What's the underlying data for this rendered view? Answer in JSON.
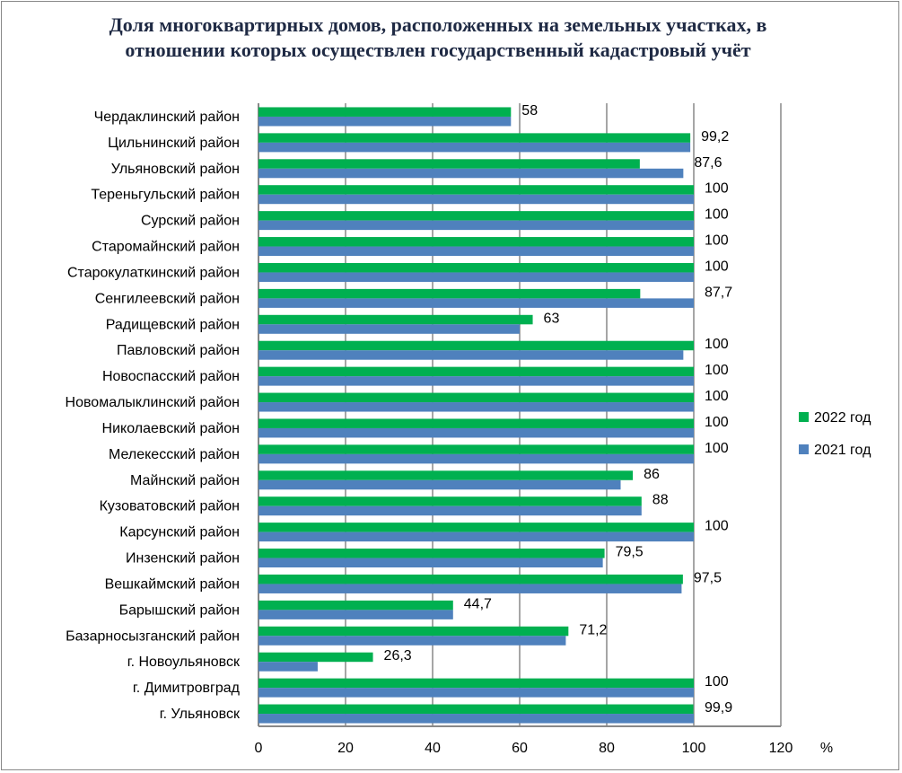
{
  "chart_data": {
    "type": "bar",
    "orientation": "horizontal",
    "title": "Доля многоквартирных домов, расположенных на земельных участках, в отношении которых осуществлен государственный кадастровый учёт",
    "xlabel": "%",
    "xlim": [
      0,
      120
    ],
    "xticks": [
      "0",
      "20",
      "40",
      "60",
      "80",
      "100",
      "120"
    ],
    "grid": true,
    "legend_position": "right",
    "categories": [
      "Чердаклинский район",
      "Цильнинский район",
      "Ульяновский район",
      "Тереньгульский район",
      "Сурский район",
      "Старомайнский район",
      "Старокулаткинский район",
      "Сенгилеевский район",
      "Радищевский район",
      "Павловский район",
      "Новоспасский район",
      "Новомалыклинский район",
      "Николаевский район",
      "Мелекесский район",
      "Майнский район",
      "Кузоватовский район",
      "Карсунский район",
      "Инзенский район",
      "Вешкаймский район",
      "Барышский район",
      "Базарносызганский район",
      "г. Новоульяновск",
      "г. Димитровград",
      "г. Ульяновск"
    ],
    "series": [
      {
        "name": "2022 год",
        "color": "#00b050",
        "values": [
          58,
          99.2,
          87.6,
          100,
          100,
          100,
          100,
          87.7,
          63,
          100,
          100,
          100,
          100,
          100,
          86,
          88,
          100,
          79.5,
          97.5,
          44.7,
          71.2,
          26.3,
          100,
          99.9
        ],
        "labels": [
          "58",
          "99,2",
          "87,6",
          "100",
          "100",
          "100",
          "100",
          "87,7",
          "63",
          "100",
          "100",
          "100",
          "100",
          "100",
          "86",
          "88",
          "100",
          "79,5",
          "97,5",
          "44,7",
          "71,2",
          "26,3",
          "100",
          "99,9"
        ]
      },
      {
        "name": "2021 год",
        "color": "#4f81bd",
        "values": [
          58,
          99.2,
          97.6,
          100,
          100,
          100,
          100,
          100,
          60,
          97.6,
          100,
          100,
          100,
          100,
          83.2,
          88,
          100,
          79.1,
          97.2,
          44.7,
          70.6,
          13.6,
          100,
          100
        ]
      }
    ]
  }
}
